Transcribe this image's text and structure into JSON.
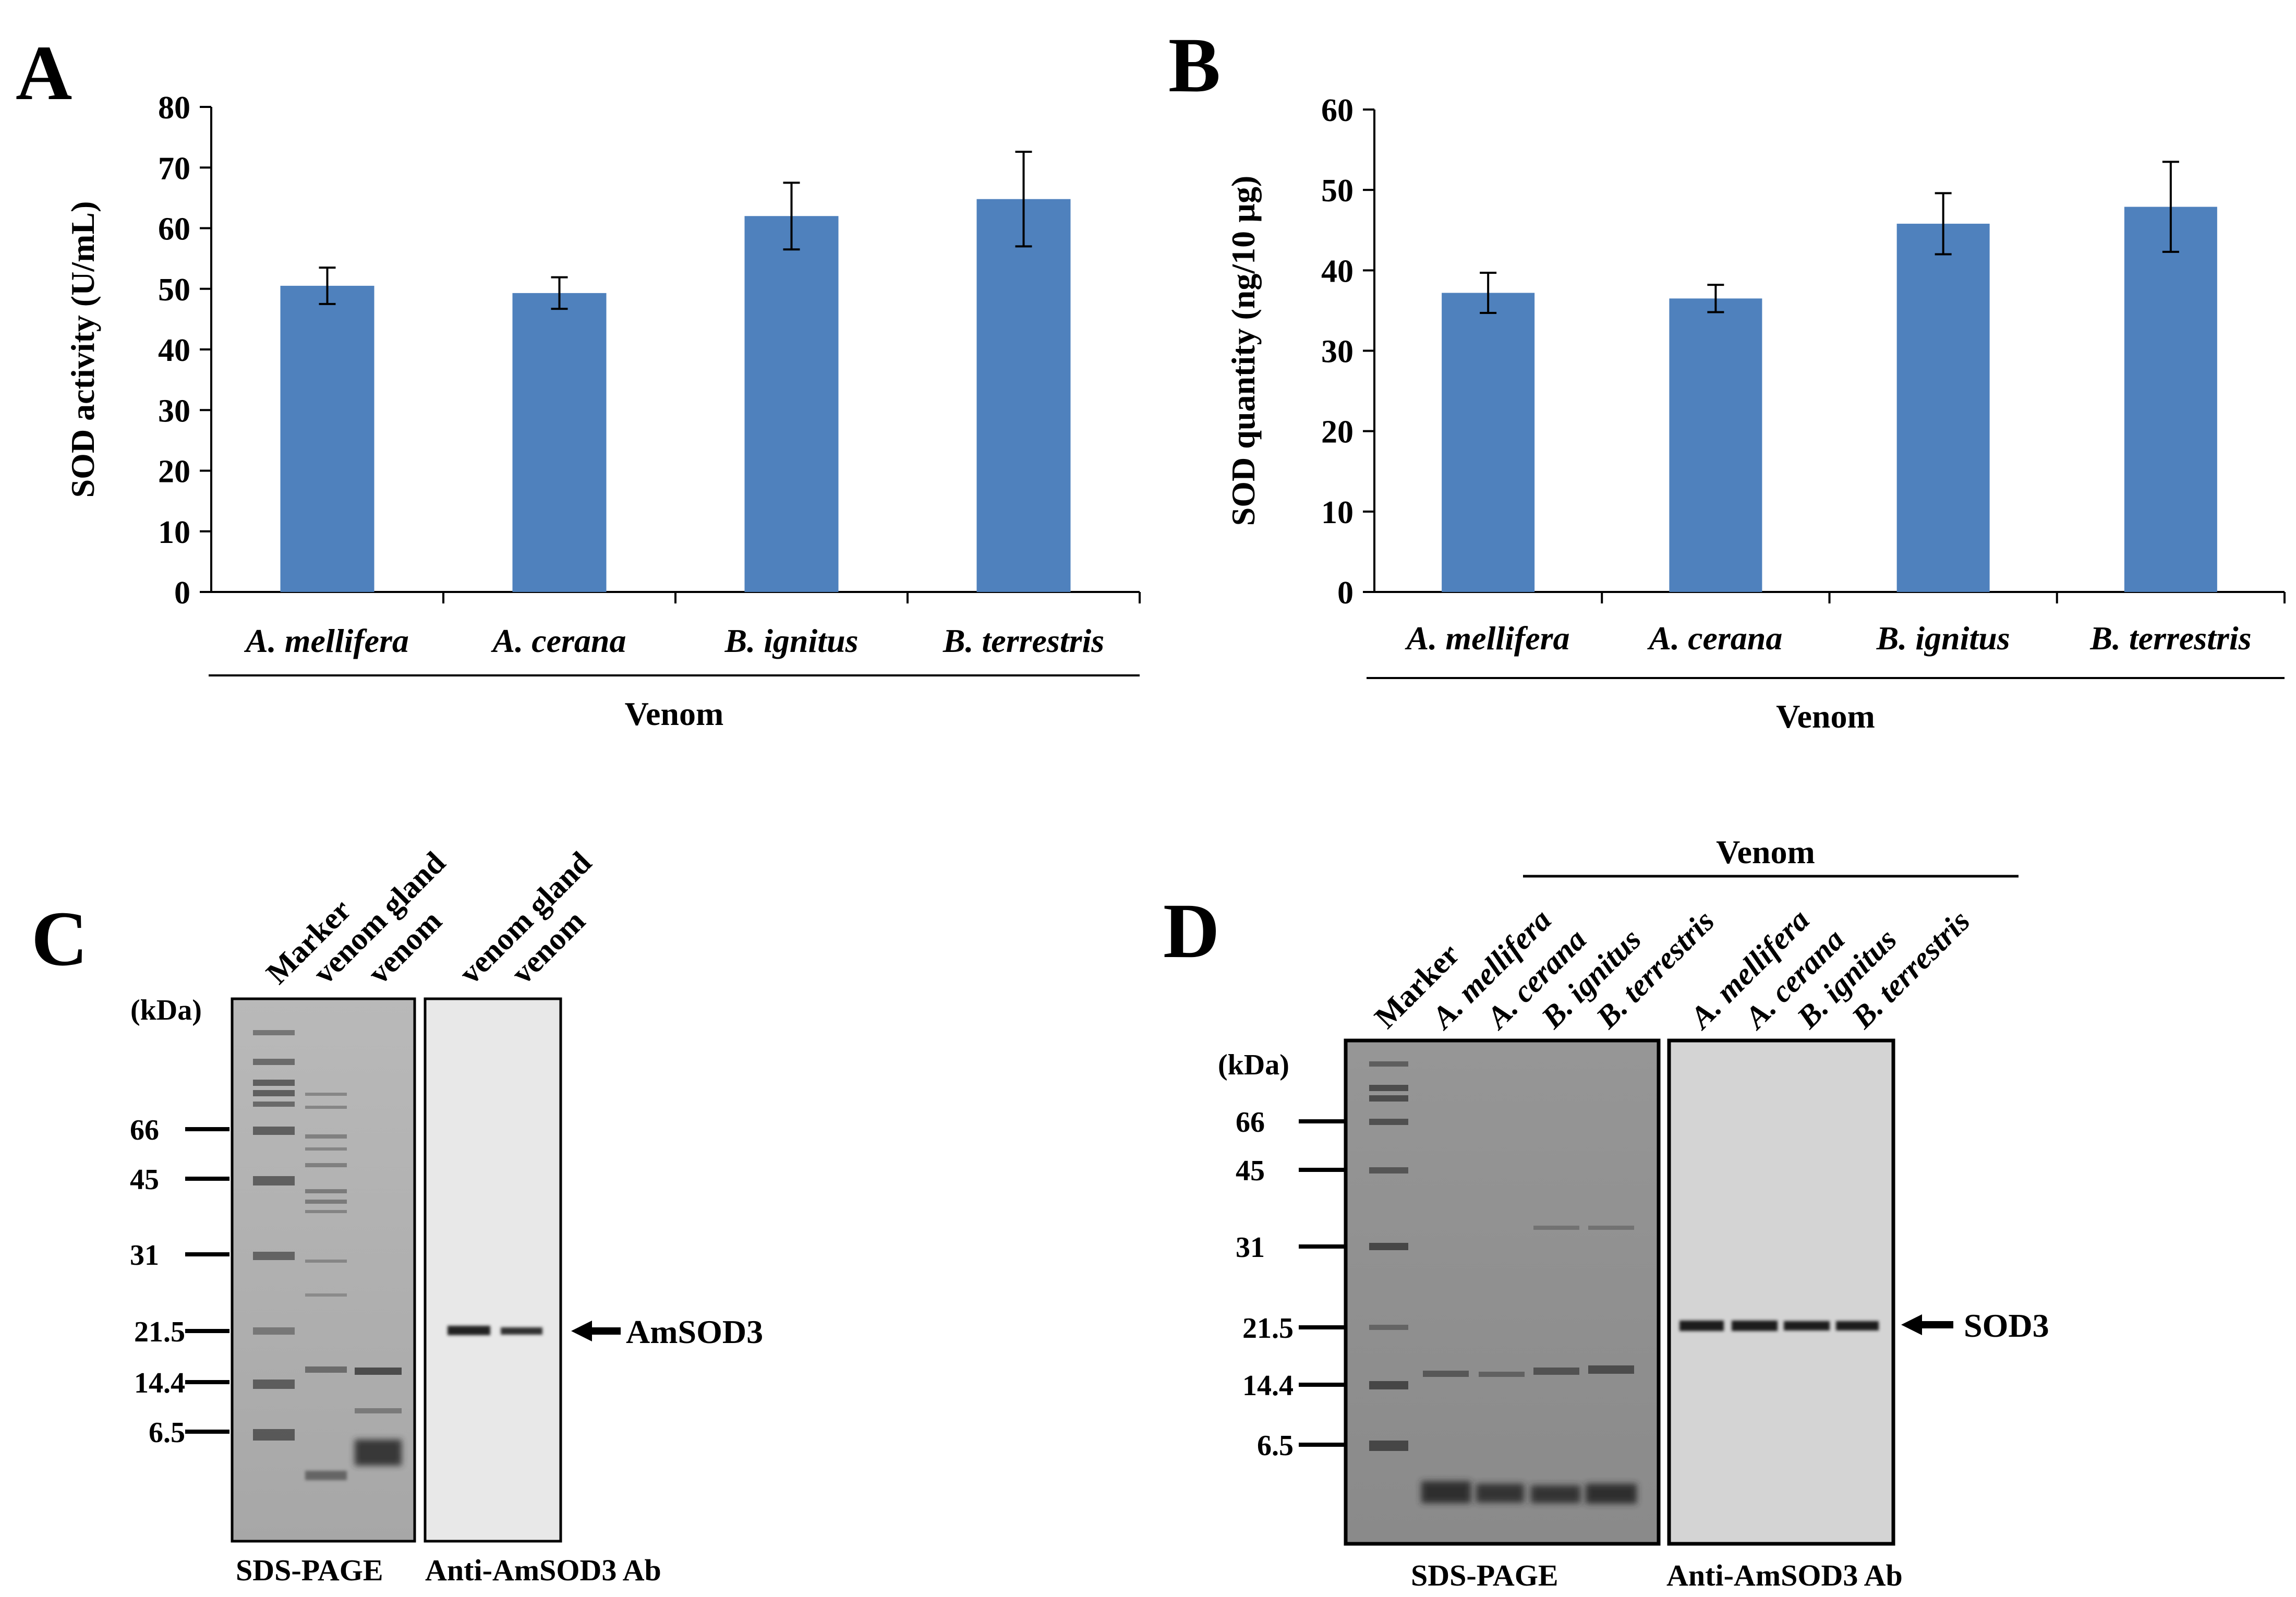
{
  "chart_data": [
    {
      "panel": "A",
      "type": "bar",
      "categories": [
        "A. mellifera",
        "A. cerana",
        "B. ignitus",
        "B. terrestris"
      ],
      "values": [
        50.5,
        49.3,
        62.0,
        64.8
      ],
      "errors": [
        3.0,
        2.6,
        5.5,
        7.8
      ],
      "ylabel": "SOD activity (U/mL)",
      "xlabel": "Venom",
      "ylim": [
        0,
        80
      ],
      "yticks": [
        0,
        10,
        20,
        30,
        40,
        50,
        60,
        70,
        80
      ],
      "color": "#4f81bd"
    },
    {
      "panel": "B",
      "type": "bar",
      "categories": [
        "A. mellifera",
        "A. cerana",
        "B. ignitus",
        "B. terrestris"
      ],
      "values": [
        37.2,
        36.5,
        45.8,
        47.9
      ],
      "errors": [
        2.5,
        1.7,
        3.8,
        5.6
      ],
      "ylabel": "SOD quantity (ng/10 µg)",
      "xlabel": "Venom",
      "ylim": [
        0,
        60
      ],
      "yticks": [
        0,
        10,
        20,
        30,
        40,
        50,
        60
      ],
      "color": "#4f81bd"
    }
  ],
  "gels": {
    "C": {
      "label": "C",
      "unit": "(kDa)",
      "markers": [
        "66",
        "45",
        "31",
        "21.5",
        "14.4",
        "6.5"
      ],
      "lanes_left": [
        "Marker",
        "venom gland",
        "venom"
      ],
      "lanes_right": [
        "venom gland",
        "venom"
      ],
      "band_label": "AmSOD3",
      "caption_left": "SDS-PAGE",
      "caption_right": "Anti-AmSOD3 Ab"
    },
    "D": {
      "label": "D",
      "unit": "(kDa)",
      "markers": [
        "66",
        "45",
        "31",
        "21.5",
        "14.4",
        "6.5"
      ],
      "group_label": "Venom",
      "lane_marker": "Marker",
      "lanes_left": [
        "A. mellifera",
        "A. cerana",
        "B. ignitus",
        "B. terrestris"
      ],
      "lanes_right": [
        "A. mellifera",
        "A. cerana",
        "B. ignitus",
        "B. terrestris"
      ],
      "band_label": "SOD3",
      "caption_left": "SDS-PAGE",
      "caption_right": "Anti-AmSOD3 Ab"
    }
  }
}
